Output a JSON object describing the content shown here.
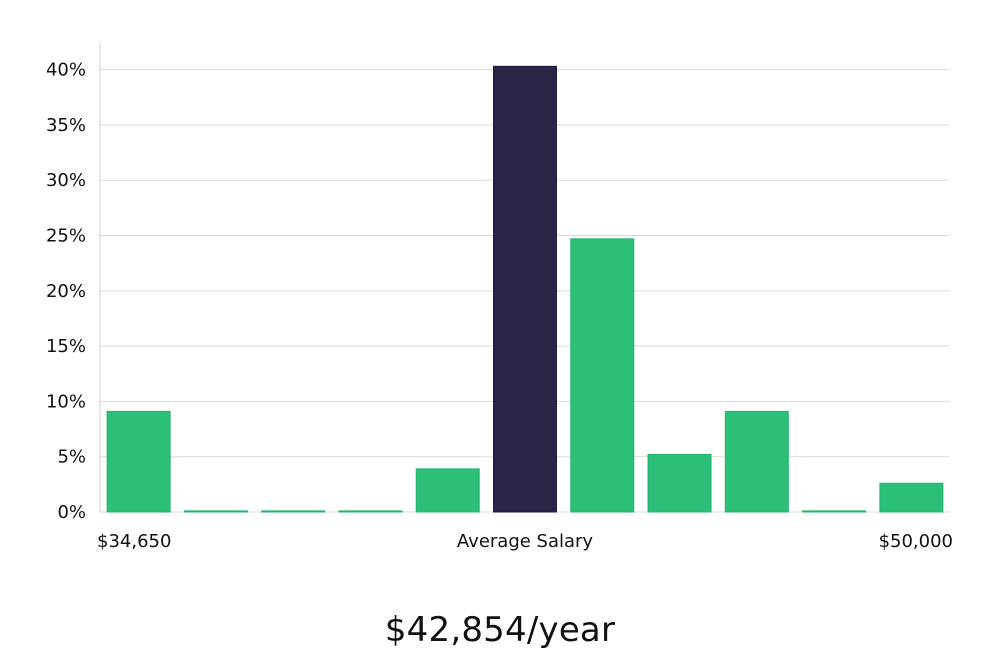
{
  "chart_data": {
    "type": "bar",
    "categories": [
      "$34,650",
      "",
      "",
      "",
      "",
      "Average Salary",
      "",
      "",
      "",
      "",
      "$50,000"
    ],
    "values": [
      9.1,
      0.1,
      0.1,
      0.1,
      3.9,
      40.3,
      24.7,
      5.2,
      9.1,
      0.1,
      2.6
    ],
    "highlight_index": 5,
    "ylim": [
      0,
      42.5
    ],
    "yticks": [
      0,
      5,
      10,
      15,
      20,
      25,
      30,
      35,
      40
    ],
    "ytick_labels": [
      "0%",
      "5%",
      "10%",
      "15%",
      "20%",
      "25%",
      "30%",
      "35%",
      "40%"
    ],
    "x_labels": {
      "left": "$34,650",
      "center": "Average Salary",
      "right": "$50,000"
    },
    "grid": true,
    "colors": {
      "bar": "#2bbf77",
      "highlight": "#282546",
      "grid": "#d9d9d9",
      "axis": "#cfcfcf"
    }
  },
  "summary": {
    "text": "$42,854/year"
  }
}
